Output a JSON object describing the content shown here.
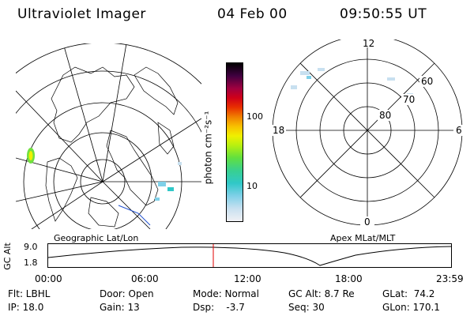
{
  "header": {
    "instrument": "Ultraviolet Imager",
    "date": "04 Feb 00",
    "time": "09:50:55 UT"
  },
  "colorbar": {
    "unit_label": "photon cm⁻²s⁻¹",
    "ticks": [
      "100",
      "10"
    ],
    "colors": [
      "#e8e8f0",
      "#c8e0f0",
      "#7fd0e8",
      "#30c8c8",
      "#38d090",
      "#60e040",
      "#b8f010",
      "#f0f000",
      "#f8c000",
      "#f08000",
      "#e83000",
      "#d00018",
      "#a00040",
      "#400040",
      "#000000"
    ]
  },
  "geographic_map": {
    "label": "Geographic Lat/Lon"
  },
  "polar_map": {
    "label": "Apex MLat/MLT",
    "mlt_labels": {
      "top": "12",
      "bottom": "0",
      "left": "18",
      "right": "6"
    },
    "lat_labels": [
      "60",
      "70",
      "80"
    ]
  },
  "orbit_plot": {
    "y_label": "GC Alt",
    "y_ticks": [
      "9.0",
      "1.8"
    ],
    "x_ticks": [
      "00:00",
      "06:00",
      "12:00",
      "18:00",
      "23:59"
    ],
    "cursor_color": "#e00000"
  },
  "info": {
    "flt": "Flt: LBHL",
    "ip": "IP: 18.0",
    "door": "Door: Open",
    "gain": "Gain: 13",
    "mode": "Mode: Normal",
    "dsp": "Dsp:    -3.7",
    "gc_alt": "GC Alt: 8.7 Re",
    "seq": "Seq: 30",
    "glat": "GLat:  74.2",
    "glon": "GLon: 170.1"
  }
}
